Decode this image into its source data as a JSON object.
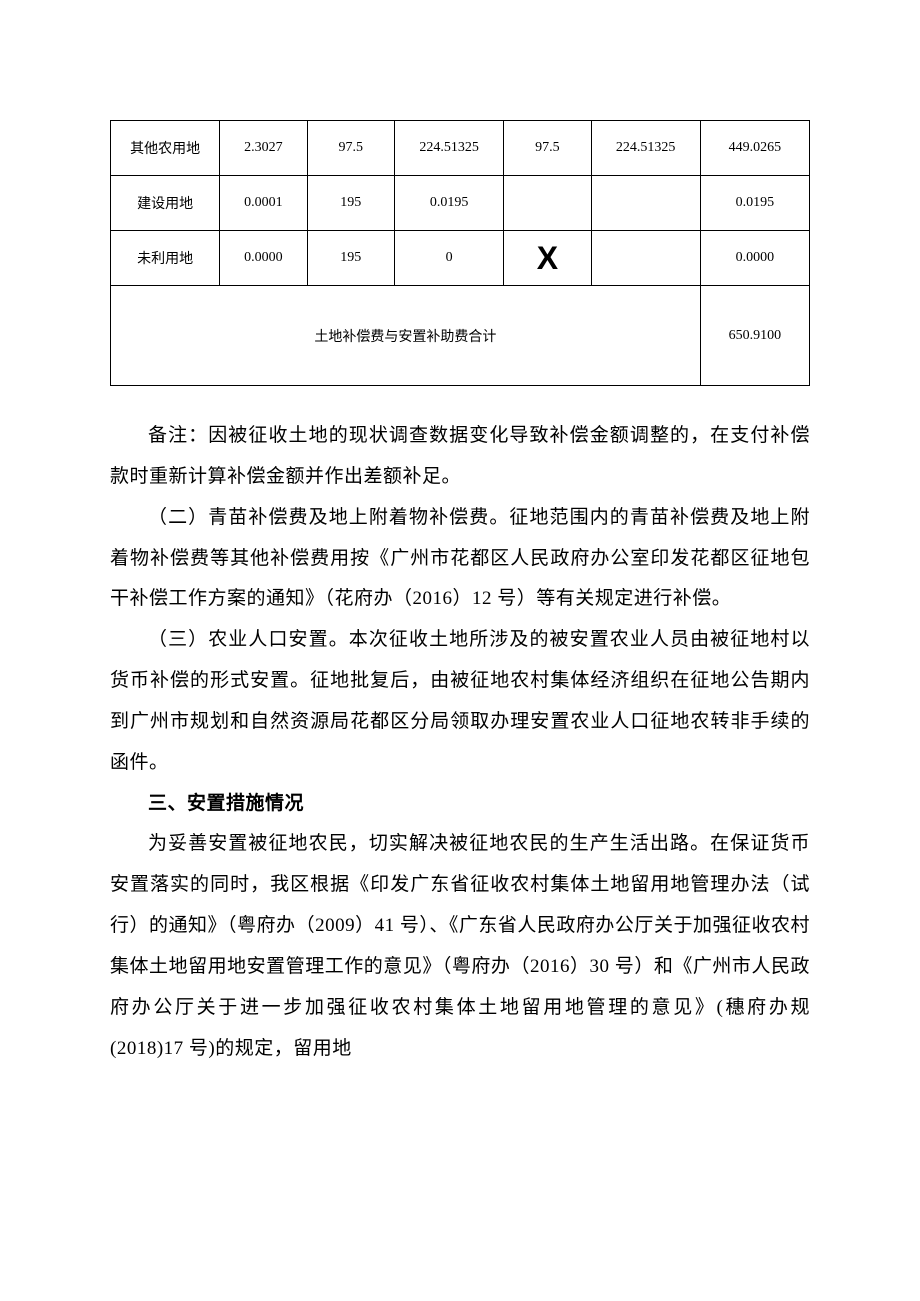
{
  "table": {
    "type": "table",
    "border_color": "#000000",
    "background_color": "#ffffff",
    "font_size": 14,
    "columns": [
      {
        "key": "category",
        "width_pct": 15,
        "align": "center"
      },
      {
        "key": "area",
        "width_pct": 12,
        "align": "center"
      },
      {
        "key": "rate1",
        "width_pct": 12,
        "align": "center"
      },
      {
        "key": "amount1",
        "width_pct": 15,
        "align": "center"
      },
      {
        "key": "rate2",
        "width_pct": 12,
        "align": "center"
      },
      {
        "key": "amount2",
        "width_pct": 15,
        "align": "center"
      },
      {
        "key": "total",
        "width_pct": 15,
        "align": "center"
      }
    ],
    "rows": [
      {
        "category": "其他农用地",
        "area": "2.3027",
        "rate1": "97.5",
        "amount1": "224.51325",
        "rate2": "97.5",
        "amount2": "224.51325",
        "total": "449.0265"
      },
      {
        "category": "建设用地",
        "area": "0.0001",
        "rate1": "195",
        "amount1": "0.0195",
        "rate2": "",
        "amount2": "",
        "total": "0.0195"
      },
      {
        "category": "未利用地",
        "area": "0.0000",
        "rate1": "195",
        "amount1": "0",
        "rate2": "",
        "amount2": "",
        "total": "0.0000",
        "has_x": true
      }
    ],
    "summary": {
      "label": "土地补偿费与安置补助费合计",
      "value": "650.9100"
    }
  },
  "body": {
    "note": "备注：因被征收土地的现状调查数据变化导致补偿金额调整的，在支付补偿款时重新计算补偿金额并作出差额补足。",
    "p2": "（二）青苗补偿费及地上附着物补偿费。征地范围内的青苗补偿费及地上附着物补偿费等其他补偿费用按《广州市花都区人民政府办公室印发花都区征地包干补偿工作方案的通知》（花府办（2016）12 号）等有关规定进行补偿。",
    "p3": "（三）农业人口安置。本次征收土地所涉及的被安置农业人员由被征地村以货币补偿的形式安置。征地批复后，由被征地农村集体经济组织在征地公告期内到广州市规划和自然资源局花都区分局领取办理安置农业人口征地农转非手续的函件。",
    "heading3": "三、安置措施情况",
    "p4": "为妥善安置被征地农民，切实解决被征地农民的生产生活出路。在保证货币安置落实的同时，我区根据《印发广东省征收农村集体土地留用地管理办法（试行）的通知》（粤府办（2009）41 号）、《广东省人民政府办公厅关于加强征收农村集体土地留用地安置管理工作的意见》（粤府办（2016）30 号）和《广州市人民政府办公厅关于进一步加强征收农村集体土地留用地管理的意见》(穗府办规(2018)17 号)的规定，留用地"
  }
}
